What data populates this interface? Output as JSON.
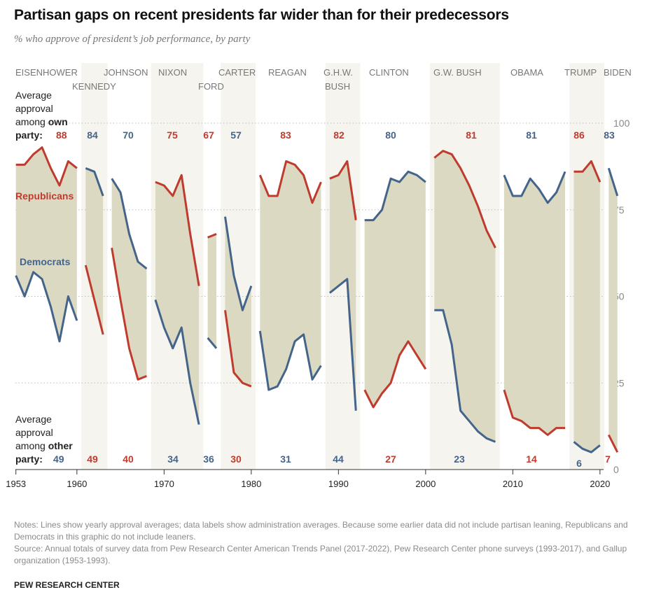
{
  "title": "Partisan gaps on recent presidents far wider than for their predecessors",
  "subtitle": "% who approve of president’s job performance, by party",
  "notes": "Notes: Lines show yearly approval averages; data labels show administration averages. Because some earlier data did not include partisan leaning, Republicans and Democrats in this graphic do not include leaners.",
  "source": "Source: Annual totals of survey data from Pew Research Center American Trends Panel (2017-2022), Pew Research Center phone surveys (1993-2017), and Gallup organization (1953-1993).",
  "brand": "PEW RESEARCH CENTER",
  "chart_data": {
    "type": "line",
    "colors": {
      "Republicans": "#bf3b2e",
      "Democrats": "#44648a",
      "gap_fill": "#dcd9c3",
      "term_band": "#f6f4ef"
    },
    "series_labels": {
      "Republicans": "Republicans",
      "Democrats": "Democrats"
    },
    "own_label": [
      "Average",
      "approval",
      "among ",
      "own",
      "party:"
    ],
    "other_label": [
      "Average",
      "approval",
      "among ",
      "other",
      "party:"
    ],
    "ylim": [
      0,
      100
    ],
    "yticks": [
      0,
      25,
      50,
      75,
      100
    ],
    "xticks": [
      "1953",
      "1960",
      "1970",
      "1980",
      "1990",
      "2000",
      "2010",
      "2020"
    ],
    "grid": true,
    "presidents": [
      {
        "name": "EISENHOWER",
        "party": "R",
        "shaded": false,
        "years": [
          1953,
          1954,
          1955,
          1956,
          1957,
          1958,
          1959,
          1960
        ],
        "rep": [
          88,
          88,
          91,
          93,
          87,
          82,
          89,
          87
        ],
        "dem": [
          56,
          50,
          57,
          55,
          47,
          37,
          50,
          43
        ],
        "own_avg": "88",
        "other_avg": "49"
      },
      {
        "name": "KENNEDY",
        "party": "D",
        "shaded": true,
        "years": [
          1961,
          1962,
          1963
        ],
        "rep": [
          59,
          49,
          39
        ],
        "dem": [
          87,
          86,
          79
        ],
        "own_avg": "84",
        "other_avg": "49"
      },
      {
        "name": "JOHNSON",
        "party": "D",
        "shaded": false,
        "years": [
          1964,
          1965,
          1966,
          1967,
          1968
        ],
        "rep": [
          64,
          49,
          35,
          26,
          27
        ],
        "dem": [
          84,
          80,
          68,
          60,
          58
        ],
        "own_avg": "70",
        "other_avg": "40"
      },
      {
        "name": "NIXON",
        "party": "R",
        "shaded": true,
        "years": [
          1969,
          1970,
          1971,
          1972,
          1973,
          1974
        ],
        "rep": [
          83,
          82,
          79,
          85,
          68,
          53
        ],
        "dem": [
          49,
          41,
          35,
          41,
          25,
          13
        ],
        "own_avg": "75",
        "other_avg": "34"
      },
      {
        "name": "FORD",
        "party": "R",
        "shaded": false,
        "years": [
          1975,
          1976
        ],
        "rep": [
          67,
          68
        ],
        "dem": [
          38,
          35
        ],
        "own_avg": "67",
        "other_avg": "36"
      },
      {
        "name": "CARTER",
        "party": "D",
        "shaded": true,
        "years": [
          1977,
          1978,
          1979,
          1980
        ],
        "rep": [
          46,
          28,
          25,
          24
        ],
        "dem": [
          73,
          56,
          46,
          53
        ],
        "own_avg": "57",
        "other_avg": "30"
      },
      {
        "name": "REAGAN",
        "party": "R",
        "shaded": false,
        "years": [
          1981,
          1982,
          1983,
          1984,
          1985,
          1986,
          1987,
          1988
        ],
        "rep": [
          85,
          79,
          79,
          89,
          88,
          85,
          77,
          83
        ],
        "dem": [
          40,
          23,
          24,
          29,
          37,
          39,
          26,
          30
        ],
        "own_avg": "83",
        "other_avg": "31"
      },
      {
        "name": "G.H.W.",
        "name2": "BUSH",
        "party": "R",
        "shaded": true,
        "years": [
          1989,
          1990,
          1991,
          1992
        ],
        "rep": [
          84,
          85,
          89,
          72
        ],
        "dem": [
          51,
          53,
          55,
          17
        ],
        "own_avg": "82",
        "other_avg": "44"
      },
      {
        "name": "CLINTON",
        "party": "D",
        "shaded": false,
        "years": [
          1993,
          1994,
          1995,
          1996,
          1997,
          1998,
          1999,
          2000
        ],
        "rep": [
          23,
          18,
          22,
          25,
          33,
          37,
          33,
          29
        ],
        "dem": [
          72,
          72,
          75,
          84,
          83,
          86,
          85,
          83
        ],
        "own_avg": "80",
        "other_avg": "27"
      },
      {
        "name": "G.W. BUSH",
        "party": "R",
        "shaded": true,
        "years": [
          2001,
          2002,
          2003,
          2004,
          2005,
          2006,
          2007,
          2008
        ],
        "rep": [
          90,
          92,
          91,
          87,
          82,
          76,
          69,
          64
        ],
        "dem": [
          46,
          46,
          36,
          17,
          14,
          11,
          9,
          8
        ],
        "own_avg": "81",
        "other_avg": "23"
      },
      {
        "name": "OBAMA",
        "party": "D",
        "shaded": false,
        "years": [
          2009,
          2010,
          2011,
          2012,
          2013,
          2014,
          2015,
          2016
        ],
        "rep": [
          23,
          15,
          14,
          12,
          12,
          10,
          12,
          12
        ],
        "dem": [
          85,
          79,
          79,
          84,
          81,
          77,
          80,
          86
        ],
        "own_avg": "81",
        "other_avg": "14"
      },
      {
        "name": "TRUMP",
        "party": "R",
        "shaded": true,
        "years": [
          2017,
          2018,
          2019,
          2020
        ],
        "rep": [
          86,
          86,
          89,
          83
        ],
        "dem": [
          8,
          6,
          5,
          7
        ],
        "own_avg": "86",
        "other_avg": "6"
      },
      {
        "name": "BIDEN",
        "party": "D",
        "shaded": false,
        "years": [
          2021,
          2022
        ],
        "rep": [
          10,
          5
        ],
        "dem": [
          87,
          79
        ],
        "own_avg": "83",
        "other_avg": "7"
      }
    ]
  }
}
